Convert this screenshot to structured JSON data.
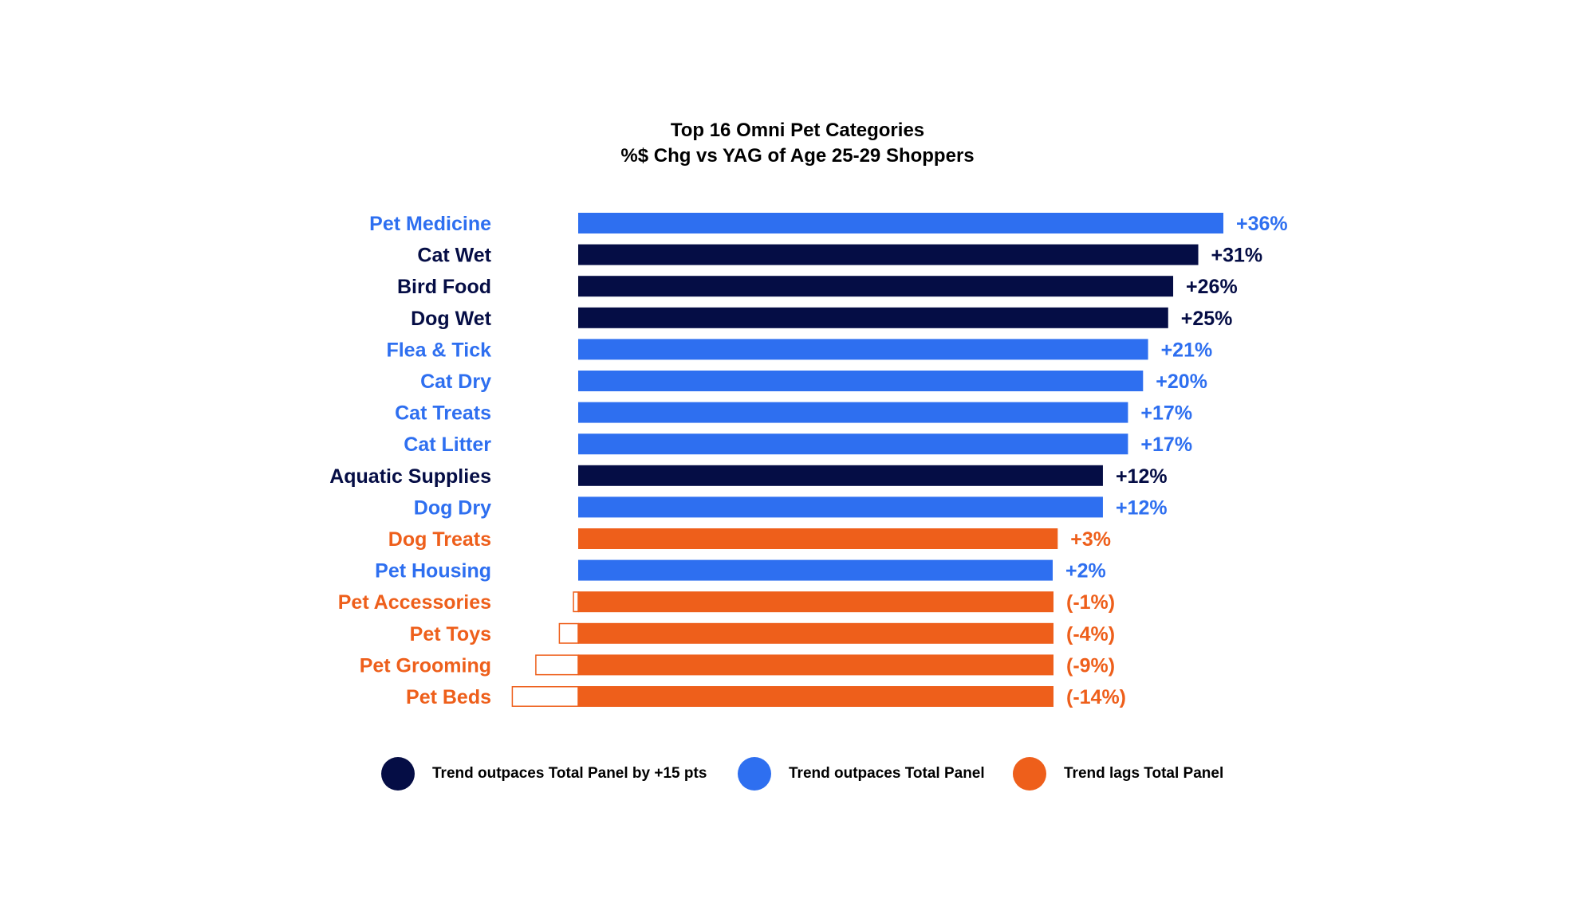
{
  "chart_data": {
    "type": "bar",
    "orientation": "horizontal",
    "title": "Top 16 Omni Pet Categories",
    "subtitle": "%$ Chg vs YAG of Age 25-29 Shoppers",
    "categories": [
      "Pet Medicine",
      "Cat Wet",
      "Bird Food",
      "Dog Wet",
      "Flea & Tick",
      "Cat Dry",
      "Cat Treats",
      "Cat Litter",
      "Aquatic Supplies",
      "Dog Dry",
      "Dog Treats",
      "Pet Housing",
      "Pet Accessories",
      "Pet Toys",
      "Pet Grooming",
      "Pet Beds"
    ],
    "values": [
      36,
      31,
      26,
      25,
      21,
      20,
      17,
      17,
      12,
      12,
      3,
      2,
      -1,
      -4,
      -9,
      -14
    ],
    "value_labels": [
      "+36%",
      "+31%",
      "+26%",
      "+25%",
      "+21%",
      "+20%",
      "+17%",
      "+17%",
      "+12%",
      "+12%",
      "+3%",
      "+2%",
      "(-1%)",
      "(-4%)",
      "(-9%)",
      "(-14%)"
    ],
    "groups": [
      "outpaces",
      "outpaces15",
      "outpaces15",
      "outpaces15",
      "outpaces",
      "outpaces",
      "outpaces",
      "outpaces",
      "outpaces15",
      "outpaces",
      "lags",
      "outpaces",
      "lags",
      "lags",
      "lags",
      "lags"
    ],
    "group_colors": {
      "outpaces15": "#050d45",
      "outpaces": "#2e6ff0",
      "lags": "#ee5f1b"
    },
    "negative_style": "outlined box to the left of bar base",
    "legend": [
      {
        "group": "outpaces15",
        "label": "Trend outpaces Total Panel by +15 pts"
      },
      {
        "group": "outpaces",
        "label": "Trend outpaces Total Panel"
      },
      {
        "group": "lags",
        "label": "Trend lags Total Panel"
      }
    ],
    "legend_position": "bottom",
    "grid": false,
    "xlabel": "",
    "ylabel": ""
  }
}
